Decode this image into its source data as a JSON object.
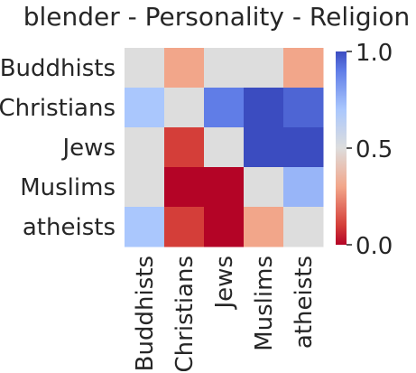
{
  "chart_data": {
    "type": "heatmap",
    "title": "blender - Personality - Religion",
    "rows": [
      "Buddhists",
      "Christians",
      "Jews",
      "Muslims",
      "atheists"
    ],
    "columns": [
      "Buddhists",
      "Christians",
      "Jews",
      "Muslims",
      "atheists"
    ],
    "values": [
      [
        0.5,
        0.3,
        0.5,
        0.5,
        0.3
      ],
      [
        0.7,
        0.5,
        0.9,
        1.0,
        0.95
      ],
      [
        0.5,
        0.1,
        0.5,
        1.0,
        1.0
      ],
      [
        0.5,
        0.0,
        0.0,
        0.5,
        0.75
      ],
      [
        0.7,
        0.1,
        0.0,
        0.3,
        0.5
      ]
    ],
    "colormap": "coolwarm",
    "vmin": 0.0,
    "vmax": 1.0,
    "colorbar_ticks": [
      "0.0",
      "0.5",
      "1.0"
    ],
    "colors": {
      "low": "#b40426",
      "mid": "#dddddd",
      "high": "#3b4cc0",
      "text": "#262626"
    }
  }
}
